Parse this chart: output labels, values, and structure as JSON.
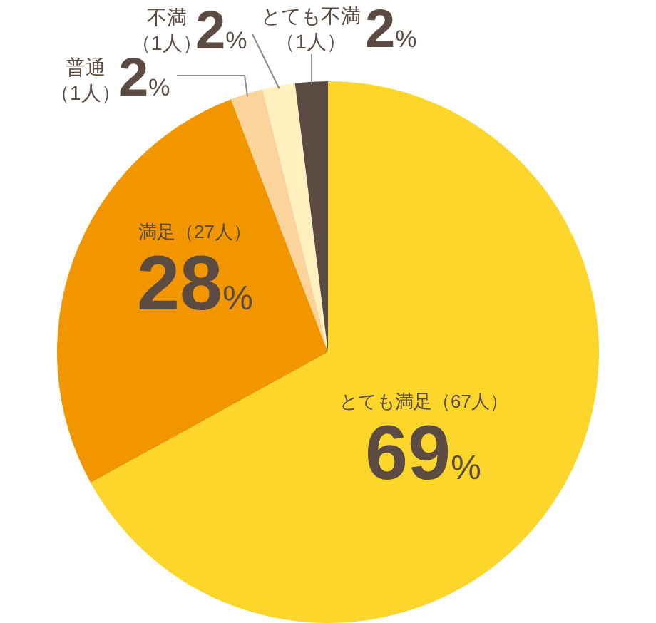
{
  "chart_data": {
    "type": "pie",
    "categories": [
      "とても満足（67人）",
      "満足（27人）",
      "普通（1人）",
      "不満（1人）",
      "とても不満（1人）"
    ],
    "values": [
      69,
      28,
      2,
      2,
      2
    ],
    "colors": [
      "#fdd62b",
      "#f29600",
      "#fbd49c",
      "#fff0be",
      "#5b4a42"
    ],
    "value_labels": [
      "69%",
      "28%",
      "2%",
      "2%",
      "2%"
    ]
  }
}
